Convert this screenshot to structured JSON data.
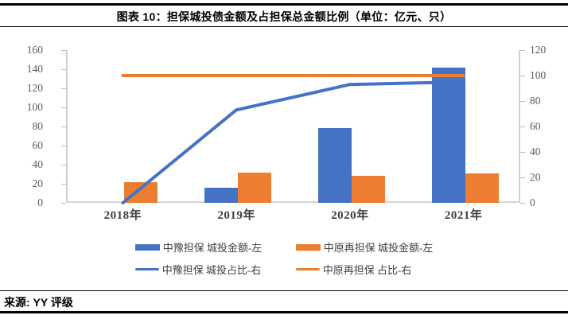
{
  "header": {
    "title": "图表 10：担保城投债金额及占担保总金额比例（单位：亿元、只）"
  },
  "footer": {
    "source": "来源: YY 评级"
  },
  "colors": {
    "blue": "#4472C4",
    "orange": "#ED7D31",
    "axis_line": "#cfcfcf",
    "tick_label": "#595959"
  },
  "chart_data": {
    "type": "bar+line combo",
    "title": "图表 10：担保城投债金额及占担保总金额比例（单位：亿元、只）",
    "categories": [
      "2018年",
      "2019年",
      "2020年",
      "2021年"
    ],
    "series": [
      {
        "name": "中豫担保 城投金额-左",
        "type": "bar",
        "axis": "left",
        "color": "#4472C4",
        "values": [
          0,
          16,
          78,
          142
        ]
      },
      {
        "name": "中原再担保 城投金额-左",
        "type": "bar",
        "axis": "left",
        "color": "#ED7D31",
        "values": [
          22,
          32,
          28,
          31
        ]
      },
      {
        "name": "中豫担保 城投占比-右",
        "type": "line",
        "axis": "right",
        "color": "#4472C4",
        "values": [
          0,
          73,
          93,
          95
        ]
      },
      {
        "name": "中原再担保 占比-右",
        "type": "line",
        "axis": "right",
        "color": "#ED7D31",
        "values": [
          100,
          100,
          100,
          100
        ]
      }
    ],
    "left_axis": {
      "min": 0,
      "max": 160,
      "step": 20,
      "ticks": [
        "0",
        "20",
        "40",
        "60",
        "80",
        "100",
        "120",
        "140",
        "160"
      ]
    },
    "right_axis": {
      "min": 0,
      "max": 120,
      "step": 20,
      "ticks": [
        "0",
        "20",
        "40",
        "60",
        "80",
        "100",
        "120"
      ]
    },
    "legend_position": "bottom",
    "grid": false
  }
}
